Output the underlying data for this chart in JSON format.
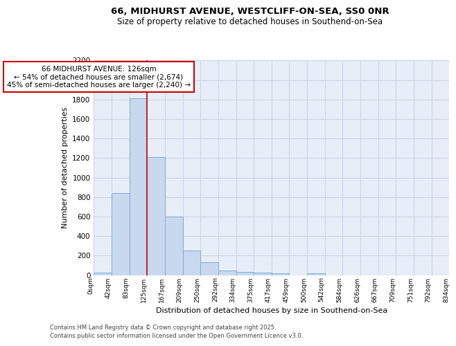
{
  "title_line1": "66, MIDHURST AVENUE, WESTCLIFF-ON-SEA, SS0 0NR",
  "title_line2": "Size of property relative to detached houses in Southend-on-Sea",
  "xlabel": "Distribution of detached houses by size in Southend-on-Sea",
  "ylabel": "Number of detached properties",
  "bin_labels": [
    "0sqm",
    "42sqm",
    "83sqm",
    "125sqm",
    "167sqm",
    "209sqm",
    "250sqm",
    "292sqm",
    "334sqm",
    "375sqm",
    "417sqm",
    "459sqm",
    "500sqm",
    "542sqm",
    "584sqm",
    "626sqm",
    "667sqm",
    "709sqm",
    "751sqm",
    "792sqm",
    "834sqm"
  ],
  "bar_heights": [
    25,
    840,
    1810,
    1210,
    600,
    255,
    130,
    47,
    35,
    25,
    15,
    0,
    15,
    0,
    0,
    0,
    0,
    0,
    0,
    0
  ],
  "bar_color": "#c8d8ee",
  "bar_edge_color": "#7aabdb",
  "grid_color": "#c8d4e8",
  "background_color": "#ffffff",
  "axes_background": "#e8eef8",
  "red_line_x": 3.0,
  "annotation_text": "66 MIDHURST AVENUE: 126sqm\n← 54% of detached houses are smaller (2,674)\n45% of semi-detached houses are larger (2,240) →",
  "annotation_box_color": "#ffffff",
  "annotation_box_edge": "#cc0000",
  "ylim": [
    0,
    2200
  ],
  "yticks": [
    0,
    200,
    400,
    600,
    800,
    1000,
    1200,
    1400,
    1600,
    1800,
    2000,
    2200
  ],
  "footer_line1": "Contains HM Land Registry data © Crown copyright and database right 2025.",
  "footer_line2": "Contains public sector information licensed under the Open Government Licence v3.0."
}
